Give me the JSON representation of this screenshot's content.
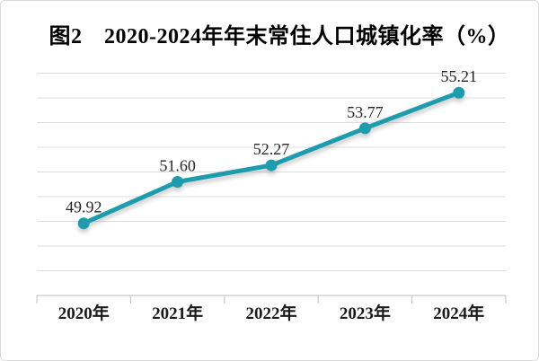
{
  "figure": {
    "title": "图2　2020-2024年年末常住人口城镇化率（%）"
  },
  "chart_data": {
    "type": "line",
    "title": "图2　2020-2024年年末常住人口城镇化率（%）",
    "categories": [
      "2020年",
      "2021年",
      "2022年",
      "2023年",
      "2024年"
    ],
    "series": [
      {
        "name": "年末常住人口城镇化率",
        "values": [
          49.92,
          51.6,
          52.27,
          53.77,
          55.21
        ],
        "value_labels": [
          "49.92",
          "51.60",
          "52.27",
          "53.77",
          "55.21"
        ]
      }
    ],
    "xlabel": "",
    "ylabel": "",
    "ylim": [
      47,
      56
    ],
    "grid_step": 1,
    "grid": "horizontal",
    "y_tick_labels_visible": false,
    "legend": "none",
    "marker": "circle",
    "colors": {
      "line": "#1E9BAD",
      "marker": "#1E9BAD",
      "grid": "#DCDCDC",
      "axis": "#C9C9C9",
      "data_label": "#262626",
      "axis_label": "#1A1A1A",
      "title": "#000000",
      "background": "#FFFFFF",
      "border": "#D9D9D9"
    }
  }
}
